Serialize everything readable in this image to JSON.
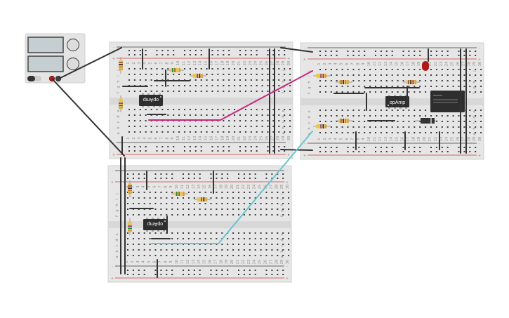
{
  "breadboard": {
    "row_letters_top": [
      "j",
      "i",
      "h",
      "g",
      "f"
    ],
    "row_letters_bottom": [
      "e",
      "d",
      "c",
      "b",
      "a"
    ],
    "column_count": 30,
    "rail_minus": "-",
    "rail_plus": "+"
  },
  "chips": {
    "opamp_label": "opAmp"
  },
  "colors": {
    "board": "#e6e6e6",
    "hole": "#3c3c3c",
    "rail_red": "#d23c3c",
    "rail_blue": "#3c3c3c",
    "wire_black": "#333333",
    "wire_magenta": "#c8287f",
    "wire_cyan": "#6cc4d0",
    "led_red": "#b01818"
  }
}
